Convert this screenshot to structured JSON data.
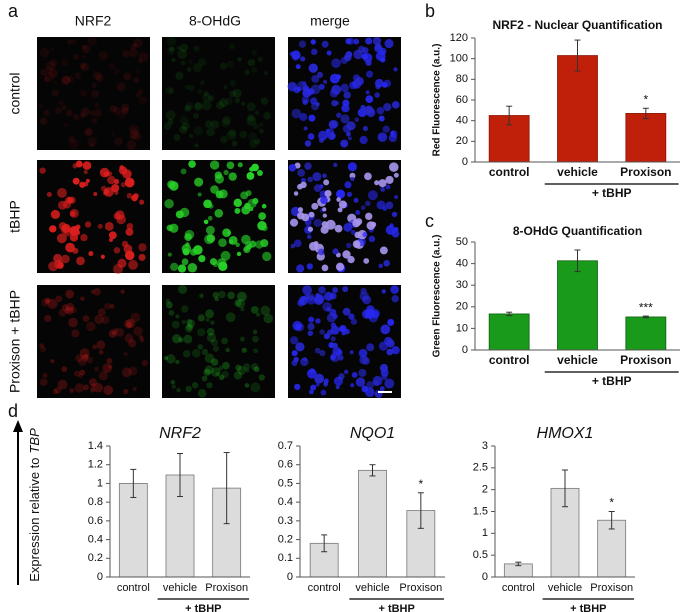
{
  "panel_a": {
    "label": "a",
    "columns": [
      "NRF2",
      "8-OHdG",
      "merge"
    ],
    "rows": [
      "control",
      "tBHP",
      "Proxison + tBHP"
    ]
  },
  "panel_d": {
    "label": "d",
    "y_label": "Expression relative to",
    "y_label_italic": "TBP"
  },
  "chart_data": [
    {
      "type": "bar",
      "panel_label": "b",
      "title": "NRF2 - Nuclear Quantification",
      "y_label": "Red Fluorescence (a.u.)",
      "categories": [
        "control",
        "vehicle",
        "Proxison"
      ],
      "group_label": "+ tBHP",
      "values": [
        45,
        103,
        47
      ],
      "errors": [
        9,
        15,
        5
      ],
      "significance": [
        null,
        null,
        "*"
      ],
      "color": "#c0200a",
      "edge": "#8a1505",
      "ylim": [
        0,
        120
      ],
      "yticks": [
        0,
        20,
        40,
        60,
        80,
        100,
        120
      ]
    },
    {
      "type": "bar",
      "panel_label": "c",
      "title": "8-OHdG Quantification",
      "y_label": "Green Fluorescence (a.u.)",
      "categories": [
        "control",
        "vehicle",
        "Proxison"
      ],
      "group_label": "+ tBHP",
      "values": [
        16.7,
        41.3,
        15.3
      ],
      "errors": [
        0.8,
        5,
        0.4
      ],
      "significance": [
        null,
        null,
        "***"
      ],
      "color": "#1a9a1a",
      "edge": "#0e600e",
      "ylim": [
        0,
        50
      ],
      "yticks": [
        0,
        10,
        20,
        30,
        40,
        50
      ]
    },
    {
      "type": "bar",
      "title": "NRF2",
      "categories": [
        "control",
        "vehicle",
        "Proxison"
      ],
      "group_label": "+ tBHP",
      "values": [
        1.0,
        1.09,
        0.95
      ],
      "errors": [
        0.15,
        0.23,
        0.38
      ],
      "significance": [
        null,
        null,
        null
      ],
      "color": "#dcdcdc",
      "edge": "#777777",
      "ylim": [
        0,
        1.4
      ],
      "yticks": [
        0,
        0.2,
        0.4,
        0.6,
        0.8,
        1,
        1.2,
        1.4
      ]
    },
    {
      "type": "bar",
      "title": "NQO1",
      "categories": [
        "control",
        "vehicle",
        "Proxison"
      ],
      "group_label": "+ tBHP",
      "values": [
        0.18,
        0.57,
        0.355
      ],
      "errors": [
        0.045,
        0.03,
        0.095
      ],
      "significance": [
        null,
        null,
        "*"
      ],
      "color": "#dcdcdc",
      "edge": "#777777",
      "ylim": [
        0,
        0.7
      ],
      "yticks": [
        0,
        0.1,
        0.2,
        0.3,
        0.4,
        0.5,
        0.6,
        0.7
      ]
    },
    {
      "type": "bar",
      "title": "HMOX1",
      "categories": [
        "control",
        "vehicle",
        "Proxison"
      ],
      "group_label": "+ tBHP",
      "values": [
        0.3,
        2.03,
        1.3
      ],
      "errors": [
        0.04,
        0.42,
        0.2
      ],
      "significance": [
        null,
        null,
        "*"
      ],
      "color": "#dcdcdc",
      "edge": "#777777",
      "ylim": [
        0,
        3
      ],
      "yticks": [
        0,
        0.5,
        1,
        1.5,
        2,
        2.5,
        3
      ]
    }
  ]
}
